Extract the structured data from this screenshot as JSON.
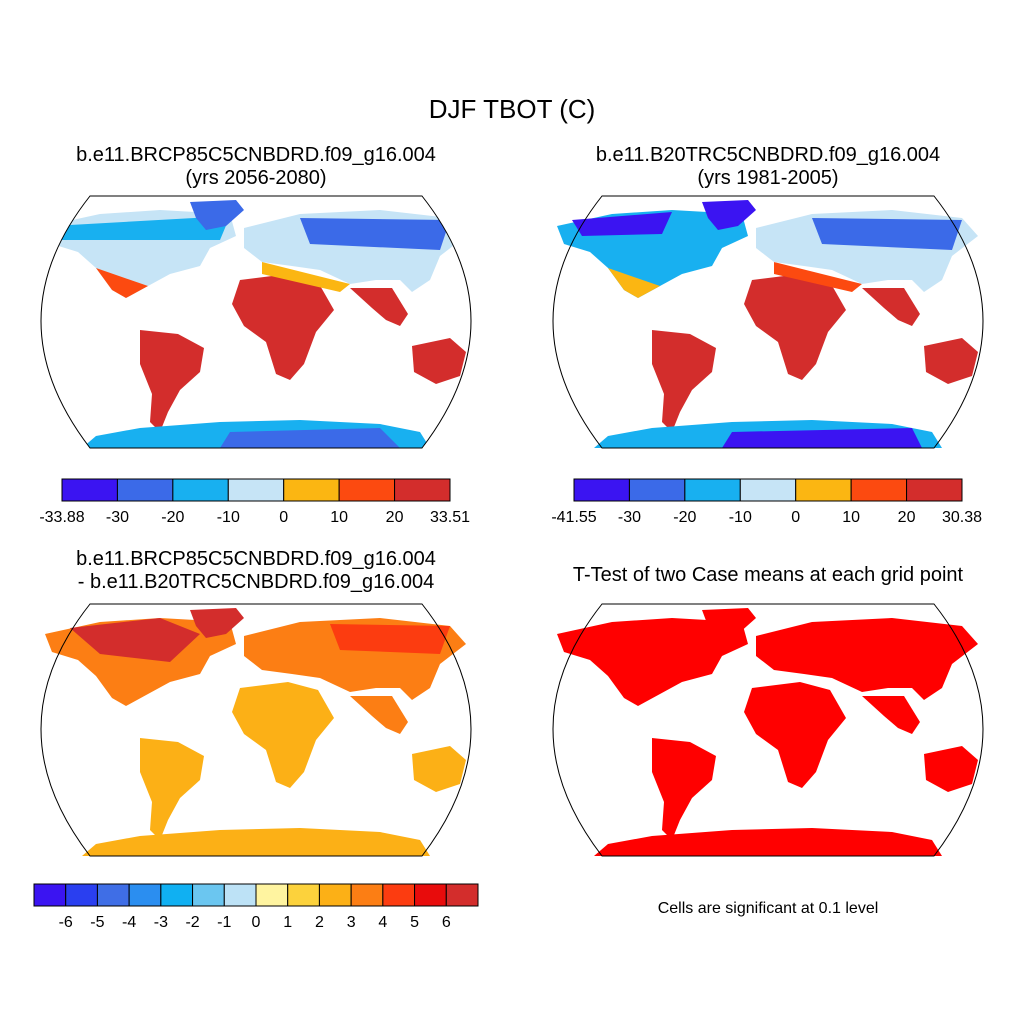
{
  "figure": {
    "title": "DJF TBOT (C)"
  },
  "panels": [
    {
      "title": [
        "b.e11.BRCP85C5CNBDRD.f09_g16.004",
        "(yrs 2056-2080)"
      ]
    },
    {
      "title": [
        "b.e11.B20TRC5CNBDRD.f09_g16.004",
        "(yrs 1981-2005)"
      ]
    },
    {
      "title": [
        "b.e11.BRCP85C5CNBDRD.f09_g16.004",
        "- b.e11.B20TRC5CNBDRD.f09_g16.004"
      ]
    },
    {
      "title": [
        "T-Test of two Case means at each grid point"
      ],
      "note": "Cells are significant at 0.1 level"
    }
  ],
  "colorbars": [
    {
      "labels": [
        "-33.88",
        "-30",
        "-20",
        "-10",
        "0",
        "10",
        "20",
        "33.51"
      ],
      "colors": [
        "#3b14f2",
        "#3b6ae8",
        "#18b0f0",
        "#c6e4f6",
        "#fbb612",
        "#fc4a10",
        "#d32d2c"
      ]
    },
    {
      "labels": [
        "-41.55",
        "-30",
        "-20",
        "-10",
        "0",
        "10",
        "20",
        "30.38"
      ],
      "colors": [
        "#3b14f2",
        "#3b6ae8",
        "#18b0f0",
        "#c6e4f6",
        "#fbb612",
        "#fc4a10",
        "#d32d2c"
      ]
    },
    {
      "labels": [
        "-6",
        "-5",
        "-4",
        "-3",
        "-2",
        "-1",
        "0",
        "1",
        "2",
        "3",
        "4",
        "5",
        "6"
      ],
      "colors": [
        "#3b14f2",
        "#2a3ff0",
        "#3f6ee6",
        "#2b8ef0",
        "#10b0f2",
        "#6bc6f0",
        "#bde2f6",
        "#fff4a0",
        "#fcd23c",
        "#fcb016",
        "#fc7e14",
        "#fc3c10",
        "#e80c0c",
        "#d32d2c"
      ]
    }
  ]
}
